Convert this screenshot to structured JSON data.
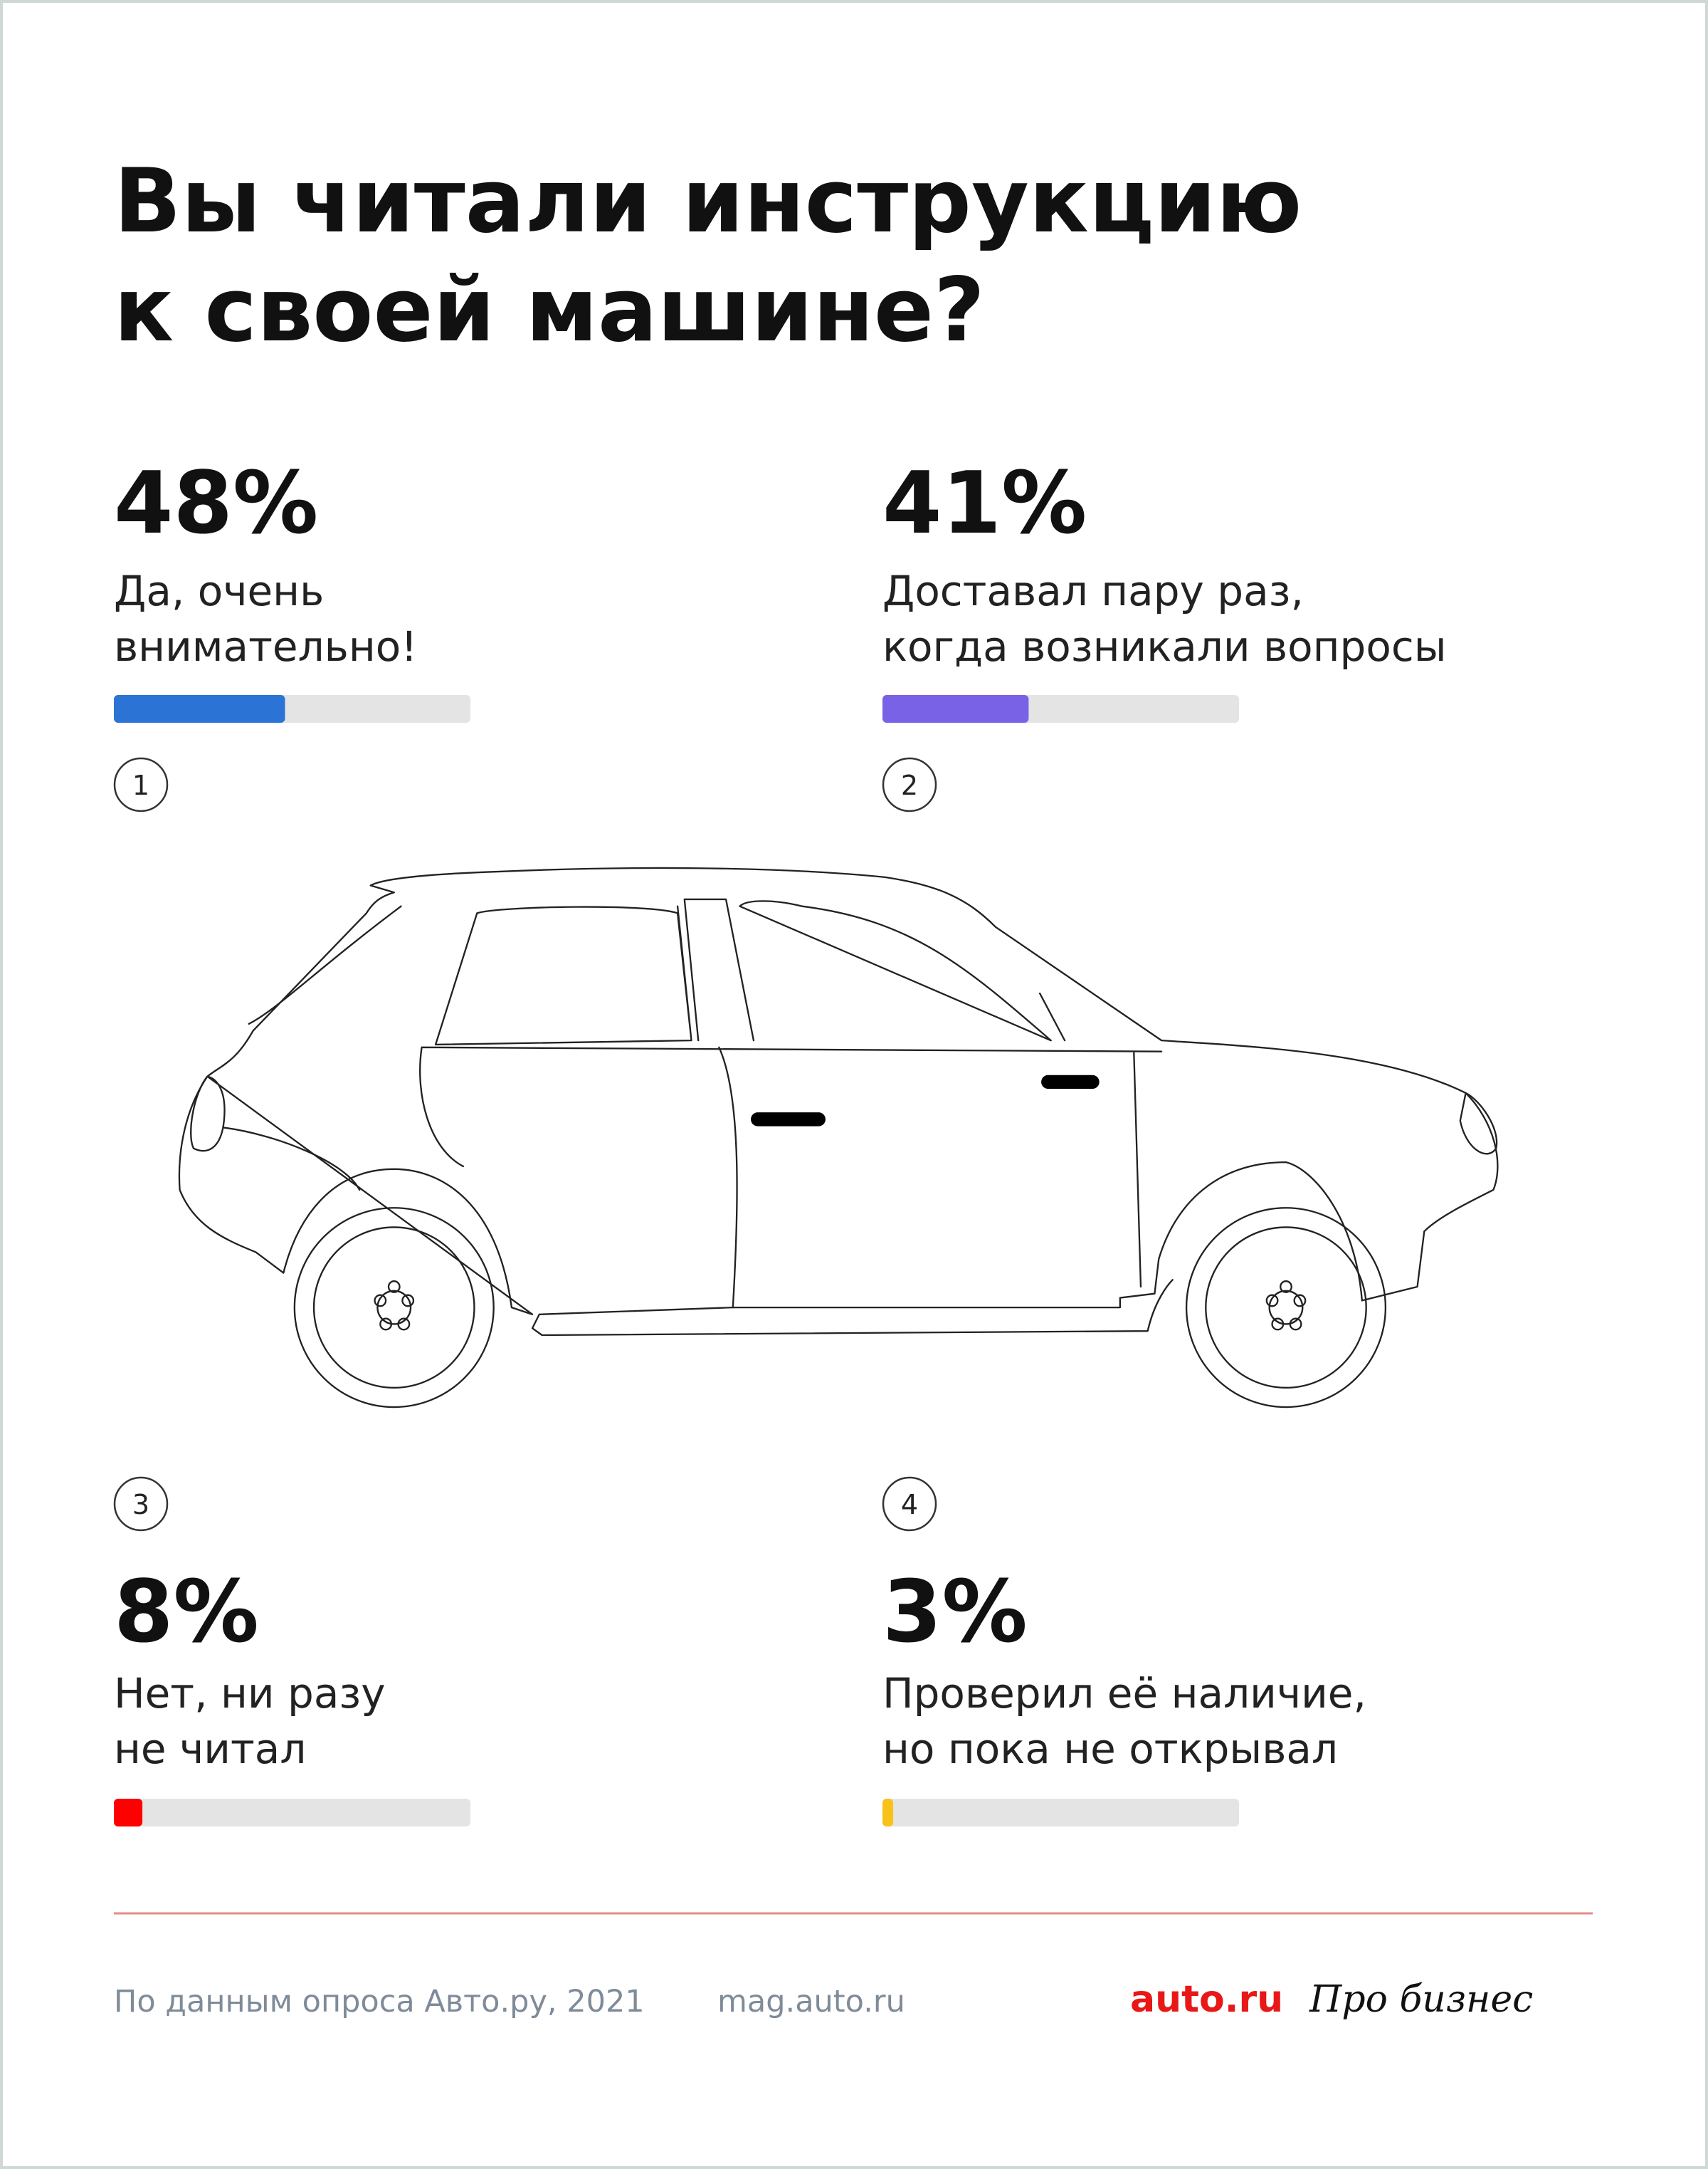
{
  "chart_data": {
    "type": "progress",
    "title": [
      "Вы читали инструкцию",
      "к своей машине?"
    ],
    "categories": [
      [
        "Да, очень",
        "внимательно!"
      ],
      [
        "Доставал пару раз,",
        "когда возникали вопросы"
      ],
      [
        "Нет, ни разу",
        "не читал"
      ],
      [
        "Проверил её наличие,",
        "но пока не открывал"
      ]
    ],
    "values": [
      48,
      41,
      8,
      3
    ],
    "value_labels": [
      "48%",
      "41%",
      "8%",
      "3%"
    ],
    "callouts": [
      1,
      2,
      3,
      4
    ],
    "colors": [
      "#2b74d6",
      "#7a62e6",
      "#ff0000",
      "#f8c21b"
    ],
    "track_color": "#e4e4e4",
    "xlim": [
      0,
      100
    ],
    "source": "По данным опроса Авто.ру, 2021",
    "site": "mag.auto.ru",
    "logos": [
      "auto.ru",
      "Про бизнес"
    ]
  }
}
